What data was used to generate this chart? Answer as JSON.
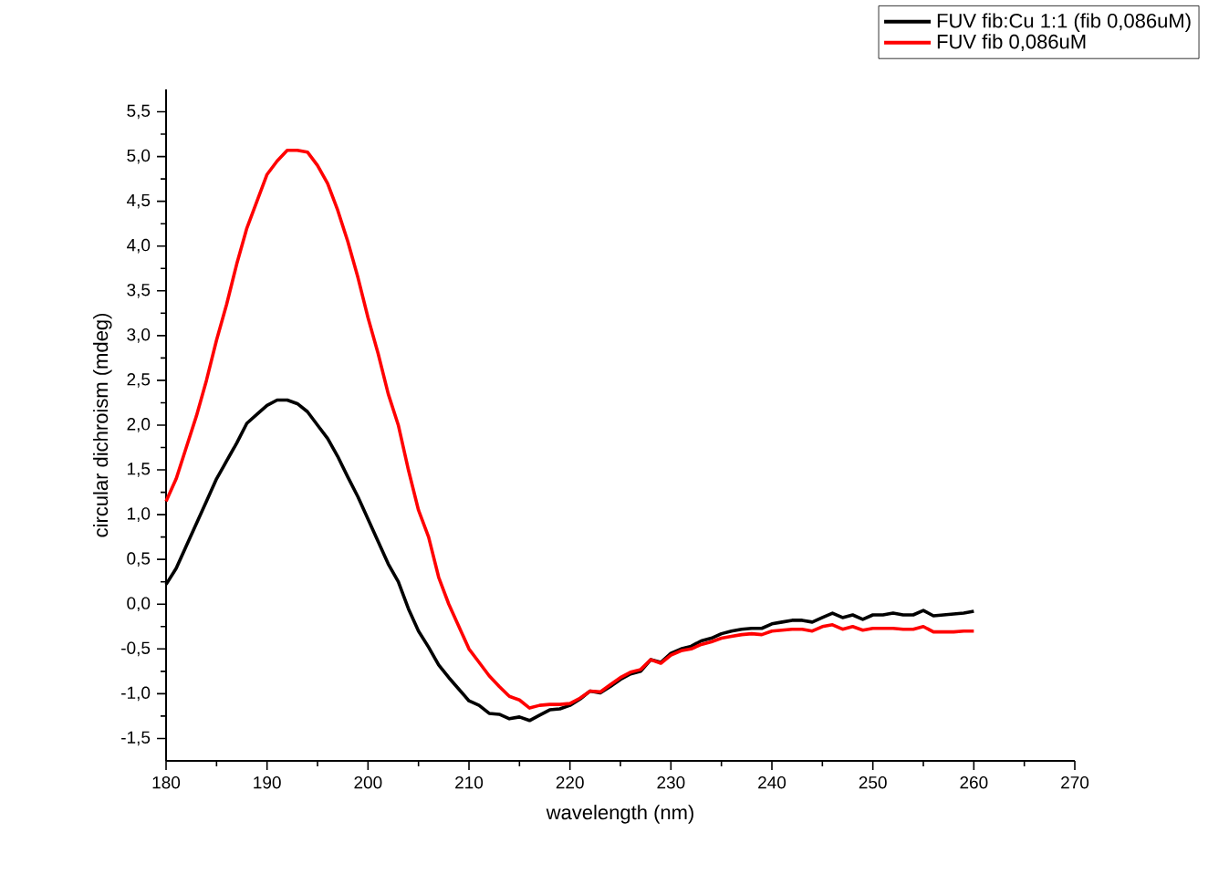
{
  "chart_data": {
    "type": "line",
    "xlabel": "wavelength (nm)",
    "ylabel": "circular dichroism (mdeg)",
    "legend": "top right",
    "marker": "none",
    "line_style": "solid",
    "grid": false,
    "x": [
      180,
      181,
      182,
      183,
      184,
      185,
      186,
      187,
      188,
      189,
      190,
      191,
      192,
      193,
      194,
      195,
      196,
      197,
      198,
      199,
      200,
      201,
      202,
      203,
      204,
      205,
      206,
      207,
      208,
      209,
      210,
      211,
      212,
      213,
      214,
      215,
      216,
      217,
      218,
      219,
      220,
      221,
      222,
      223,
      224,
      225,
      226,
      227,
      228,
      229,
      230,
      231,
      232,
      233,
      234,
      235,
      236,
      237,
      238,
      239,
      240,
      241,
      242,
      243,
      244,
      245,
      246,
      247,
      248,
      249,
      250,
      251,
      252,
      253,
      254,
      255,
      256,
      257,
      258,
      259,
      260
    ],
    "xlim": [
      180,
      270
    ],
    "xticks": [
      180,
      190,
      200,
      210,
      220,
      230,
      240,
      250,
      260,
      270
    ],
    "ylim": [
      -1.75,
      5.75
    ],
    "yticks": [
      {
        "value": -1.5,
        "label": "-1,5"
      },
      {
        "value": -1,
        "label": "-1,0"
      },
      {
        "value": -0.5,
        "label": "-0,5"
      },
      {
        "value": 0,
        "label": "0,0"
      },
      {
        "value": 0.5,
        "label": "0,5"
      },
      {
        "value": 1,
        "label": "1,0"
      },
      {
        "value": 1.5,
        "label": "1,5"
      },
      {
        "value": 2,
        "label": "2,0"
      },
      {
        "value": 2.5,
        "label": "2,5"
      },
      {
        "value": 3,
        "label": "3,0"
      },
      {
        "value": 3.5,
        "label": "3,5"
      },
      {
        "value": 4,
        "label": "4,0"
      },
      {
        "value": 4.5,
        "label": "4,5"
      },
      {
        "value": 5,
        "label": "5,0"
      },
      {
        "value": 5.5,
        "label": "5,5"
      }
    ],
    "series": [
      {
        "name": "FUV fib:Cu 1:1 (fib 0,086uM)",
        "color": "#000000",
        "values": [
          0.22,
          0.4,
          0.65,
          0.9,
          1.15,
          1.4,
          1.6,
          1.8,
          2.02,
          2.12,
          2.22,
          2.28,
          2.28,
          2.24,
          2.15,
          2.0,
          1.85,
          1.65,
          1.42,
          1.2,
          0.95,
          0.7,
          0.45,
          0.25,
          -0.05,
          -0.3,
          -0.48,
          -0.68,
          -0.82,
          -0.95,
          -1.08,
          -1.13,
          -1.22,
          -1.23,
          -1.28,
          -1.26,
          -1.3,
          -1.24,
          -1.18,
          -1.17,
          -1.13,
          -1.06,
          -0.97,
          -0.99,
          -0.92,
          -0.84,
          -0.78,
          -0.75,
          -0.62,
          -0.65,
          -0.55,
          -0.5,
          -0.47,
          -0.41,
          -0.38,
          -0.33,
          -0.3,
          -0.28,
          -0.27,
          -0.27,
          -0.22,
          -0.2,
          -0.18,
          -0.18,
          -0.2,
          -0.15,
          -0.1,
          -0.15,
          -0.12,
          -0.17,
          -0.12,
          -0.12,
          -0.1,
          -0.12,
          -0.12,
          -0.07,
          -0.13,
          -0.12,
          -0.11,
          -0.1,
          -0.08
        ]
      },
      {
        "name": "FUV fib 0,086uM",
        "color": "#ff0000",
        "values": [
          1.15,
          1.4,
          1.75,
          2.1,
          2.5,
          2.95,
          3.35,
          3.8,
          4.2,
          4.5,
          4.8,
          4.95,
          5.07,
          5.07,
          5.05,
          4.9,
          4.7,
          4.4,
          4.05,
          3.65,
          3.2,
          2.8,
          2.35,
          2.0,
          1.5,
          1.05,
          0.75,
          0.3,
          0.0,
          -0.25,
          -0.5,
          -0.65,
          -0.8,
          -0.92,
          -1.03,
          -1.07,
          -1.16,
          -1.13,
          -1.12,
          -1.12,
          -1.11,
          -1.05,
          -0.97,
          -0.98,
          -0.9,
          -0.82,
          -0.76,
          -0.73,
          -0.62,
          -0.66,
          -0.57,
          -0.52,
          -0.5,
          -0.45,
          -0.42,
          -0.38,
          -0.36,
          -0.34,
          -0.33,
          -0.34,
          -0.3,
          -0.29,
          -0.28,
          -0.28,
          -0.3,
          -0.25,
          -0.23,
          -0.28,
          -0.25,
          -0.29,
          -0.27,
          -0.27,
          -0.27,
          -0.28,
          -0.28,
          -0.25,
          -0.31,
          -0.31,
          -0.31,
          -0.3,
          -0.3
        ]
      }
    ]
  }
}
